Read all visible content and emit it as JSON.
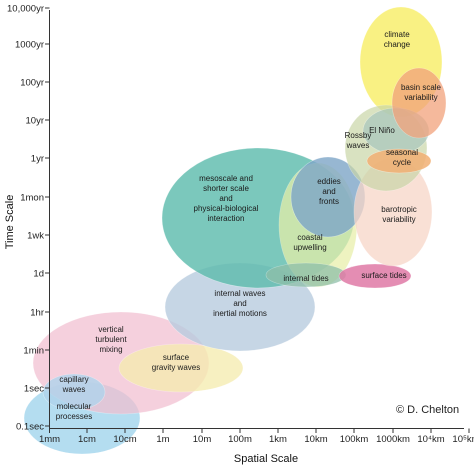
{
  "axes": {
    "x_title": "Spatial Scale",
    "y_title": "Time Scale",
    "x_ticks": [
      "1mm",
      "1cm",
      "10cm",
      "1m",
      "10m",
      "100m",
      "1km",
      "10km",
      "100km",
      "1000km",
      "10⁴km",
      "10⁵km"
    ],
    "y_ticks": [
      "10,000yr",
      "1000yr",
      "100yr",
      "10yr",
      "1yr",
      "1mon",
      "1wk",
      "1d",
      "1hr",
      "1min",
      "1sec",
      "0.1sec"
    ]
  },
  "credit": "© D. Chelton",
  "processes": [
    {
      "id": "molecular",
      "label": [
        "molecular",
        "processes"
      ],
      "color": "#a8d8ee"
    },
    {
      "id": "capillary",
      "label": [
        "capillary",
        "waves"
      ],
      "color": "#b0d4ec"
    },
    {
      "id": "vertical-turbulent",
      "label": [
        "vertical",
        "turbulent",
        "mixing"
      ],
      "color": "#f2bfd0"
    },
    {
      "id": "surface-gravity",
      "label": [
        "surface",
        "gravity waves"
      ],
      "color": "#f6ecb0"
    },
    {
      "id": "internal-waves",
      "label": [
        "internal waves",
        "and",
        "inertial motions"
      ],
      "color": "#b9ccdf"
    },
    {
      "id": "mesoscale",
      "label": [
        "mesoscale and",
        "shorter scale",
        "and",
        "physical-biological",
        "interaction"
      ],
      "color": "#5fbcae"
    },
    {
      "id": "coastal-upwelling",
      "label": [
        "coastal",
        "upwelling"
      ],
      "color": "#e8efa8"
    },
    {
      "id": "eddies",
      "label": [
        "eddies",
        "and",
        "fronts"
      ],
      "color": "#7ea6c8"
    },
    {
      "id": "internal-tides",
      "label": [
        "internal tides"
      ],
      "color": "#8fbfa9"
    },
    {
      "id": "surface-tides",
      "label": [
        "surface tides"
      ],
      "color": "#e07aa6"
    },
    {
      "id": "barotropic",
      "label": [
        "barotropic",
        "variability"
      ],
      "color": "#f8d6c8"
    },
    {
      "id": "rossby",
      "label": [
        "Rossby",
        "waves"
      ],
      "color": "#c9d6a8"
    },
    {
      "id": "el-nino",
      "label": [
        "El Niño"
      ],
      "color": "#a8c6bd"
    },
    {
      "id": "seasonal",
      "label": [
        "seasonal",
        "cycle"
      ],
      "color": "#f2b074"
    },
    {
      "id": "climate",
      "label": [
        "climate",
        "change"
      ],
      "color": "#f8ef6e"
    },
    {
      "id": "basin-scale",
      "label": [
        "basin scale",
        "variability"
      ],
      "color": "#f2a27c"
    }
  ]
}
